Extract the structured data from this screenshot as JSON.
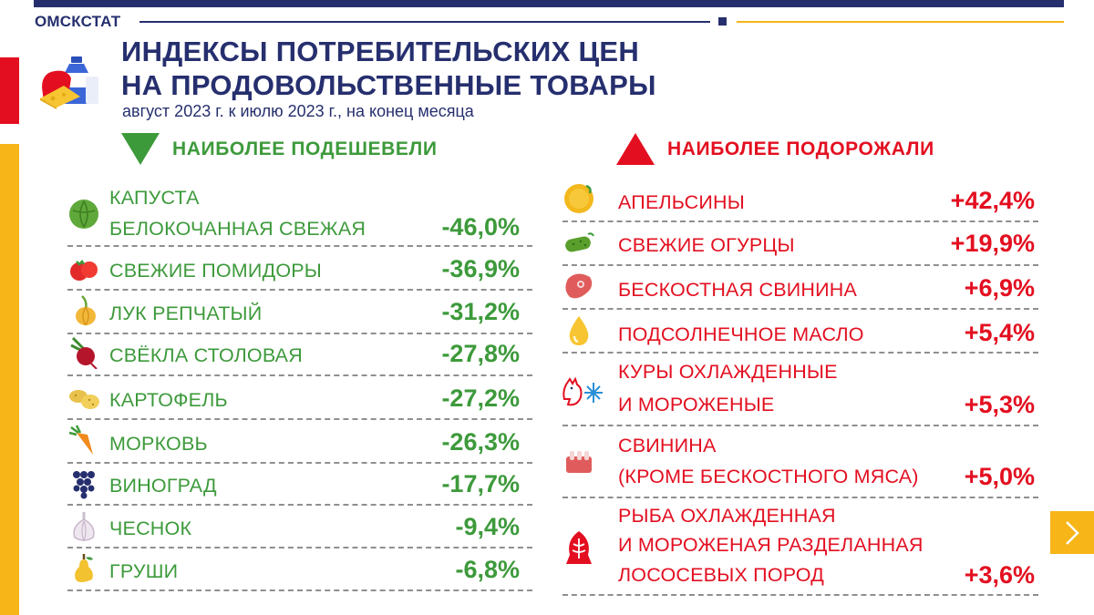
{
  "header": {
    "org": "ОМСКСТАТ",
    "title_line1": "ИНДЕКСЫ ПОТРЕБИТЕЛЬСКИХ ЦЕН",
    "title_line2": "НА ПРОДОВОЛЬСТВЕННЫЕ ТОВАРЫ",
    "subtitle": "август 2023 г. к июлю 2023 г., на конец месяца"
  },
  "colors": {
    "navy": "#262f6e",
    "green": "#3d9a3b",
    "red": "#e30f20",
    "orange": "#f7b518"
  },
  "cheaper": {
    "heading": "НАИБОЛЕЕ ПОДЕШЕВЕЛИ",
    "items": [
      {
        "icon": "cabbage-icon",
        "line1": "КАПУСТА",
        "line2": "БЕЛОКОЧАННАЯ СВЕЖАЯ",
        "value": "-46,0%"
      },
      {
        "icon": "tomato-icon",
        "line1": "СВЕЖИЕ ПОМИДОРЫ",
        "value": "-36,9%"
      },
      {
        "icon": "onion-icon",
        "line1": "ЛУК РЕПЧАТЫЙ",
        "value": "-31,2%"
      },
      {
        "icon": "beet-icon",
        "line1": "СВЁКЛА СТОЛОВАЯ",
        "value": "-27,8%"
      },
      {
        "icon": "potato-icon",
        "line1": "КАРТОФЕЛЬ",
        "value": "-27,2%"
      },
      {
        "icon": "carrot-icon",
        "line1": "МОРКОВЬ",
        "value": "-26,3%"
      },
      {
        "icon": "grapes-icon",
        "line1": "ВИНОГРАД",
        "value": "-17,7%"
      },
      {
        "icon": "garlic-icon",
        "line1": "ЧЕСНОК",
        "value": "-9,4%"
      },
      {
        "icon": "pear-icon",
        "line1": "ГРУШИ",
        "value": "-6,8%"
      }
    ]
  },
  "pricier": {
    "heading": "НАИБОЛЕЕ ПОДОРОЖАЛИ",
    "items": [
      {
        "icon": "orange-fruit-icon",
        "line1": "АПЕЛЬСИНЫ",
        "value": "+42,4%"
      },
      {
        "icon": "cucumber-icon",
        "line1": "СВЕЖИЕ ОГУРЦЫ",
        "value": "+19,9%"
      },
      {
        "icon": "pork-steak-icon",
        "line1": "БЕСКОСТНАЯ СВИНИНА",
        "value": "+6,9%"
      },
      {
        "icon": "oil-drop-icon",
        "line1": "ПОДСОЛНЕЧНОЕ МАСЛО",
        "value": "+5,4%"
      },
      {
        "icon": "chicken-snowflake-icon",
        "line1": "КУРЫ ОХЛАЖДЕННЫЕ",
        "line2": "И МОРОЖЕНЫЕ",
        "value": "+5,3%"
      },
      {
        "icon": "pork-ribs-icon",
        "line1": "СВИНИНА",
        "line2": "(КРОМЕ БЕСКОСТНОГО МЯСА)",
        "value": "+5,0%"
      },
      {
        "icon": "fish-icon",
        "line1": "РЫБА ОХЛАЖДЕННАЯ",
        "line2": "И МОРОЖЕНАЯ РАЗДЕЛАННАЯ",
        "line3": "ЛОСОСЕВЫХ ПОРОД",
        "value": "+3,6%"
      }
    ]
  },
  "nav": {
    "next_icon": "chevron-right-icon"
  }
}
